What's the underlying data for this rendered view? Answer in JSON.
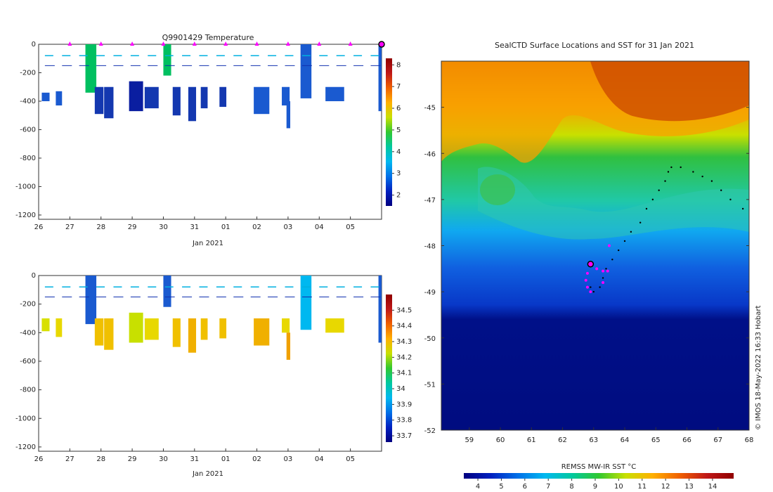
{
  "chart_data": [
    {
      "type": "heatmap",
      "title": "Q9901429  Temperature",
      "xlabel": "Jan 2021",
      "ylabel": "",
      "x_tick_labels": [
        "26",
        "27",
        "28",
        "29",
        "30",
        "31",
        "01",
        "02",
        "03",
        "04",
        "05"
      ],
      "y_tick_labels": [
        "0",
        "-200",
        "-400",
        "-600",
        "-800",
        "-1000",
        "-1200"
      ],
      "ylim": [
        -1230,
        0
      ],
      "colorbar": {
        "ticks": [
          "2",
          "3",
          "4",
          "5",
          "6",
          "7",
          "8"
        ],
        "vmin": 1.5,
        "vmax": 8.3,
        "colors": [
          "#000080",
          "#0020c0",
          "#0070e8",
          "#00b8f0",
          "#00c8a0",
          "#30c830",
          "#c8e000",
          "#ffb000",
          "#f06000",
          "#c01818",
          "#900000"
        ]
      },
      "surface_markers_day": [
        27,
        28,
        29,
        30,
        31,
        32,
        33,
        34,
        35,
        36
      ],
      "current_marker_day": 37,
      "profiles": [
        {
          "day": 26.1,
          "w": 0.25,
          "top": -340,
          "bottom": -400,
          "color": "#1a5ad0"
        },
        {
          "day": 26.55,
          "w": 0.2,
          "top": -330,
          "bottom": -430,
          "color": "#1a5ad0"
        },
        {
          "day": 27.5,
          "w": 0.35,
          "top": 0,
          "bottom": -340,
          "color": "#00c060"
        },
        {
          "day": 27.8,
          "w": 0.28,
          "top": -300,
          "bottom": -490,
          "color": "#1438b0"
        },
        {
          "day": 28.1,
          "w": 0.3,
          "top": -300,
          "bottom": -520,
          "color": "#1438b0"
        },
        {
          "day": 28.9,
          "w": 0.45,
          "top": -260,
          "bottom": -470,
          "color": "#0a1ea0"
        },
        {
          "day": 29.4,
          "w": 0.45,
          "top": -300,
          "bottom": -450,
          "color": "#1438b0"
        },
        {
          "day": 30.0,
          "w": 0.25,
          "top": 0,
          "bottom": -220,
          "color": "#00c060"
        },
        {
          "day": 30.3,
          "w": 0.25,
          "top": -300,
          "bottom": -500,
          "color": "#1438b0"
        },
        {
          "day": 30.8,
          "w": 0.25,
          "top": -300,
          "bottom": -540,
          "color": "#1438b0"
        },
        {
          "day": 31.2,
          "w": 0.22,
          "top": -300,
          "bottom": -450,
          "color": "#1438b0"
        },
        {
          "day": 31.8,
          "w": 0.22,
          "top": -300,
          "bottom": -440,
          "color": "#1438b0"
        },
        {
          "day": 32.9,
          "w": 0.5,
          "top": -300,
          "bottom": -490,
          "color": "#1a5ad0"
        },
        {
          "day": 33.8,
          "w": 0.25,
          "top": -300,
          "bottom": -430,
          "color": "#1a5ad0"
        },
        {
          "day": 33.95,
          "w": 0.12,
          "top": -400,
          "bottom": -590,
          "color": "#1a5ad0"
        },
        {
          "day": 34.4,
          "w": 0.35,
          "top": 0,
          "bottom": -380,
          "color": "#1a5ad0"
        },
        {
          "day": 35.2,
          "w": 0.6,
          "top": -300,
          "bottom": -400,
          "color": "#1a5ad0"
        },
        {
          "day": 36.9,
          "w": 0.1,
          "top": 0,
          "bottom": -470,
          "color": "#1a5ad0"
        }
      ]
    },
    {
      "type": "heatmap",
      "title": "",
      "xlabel": "Jan 2021",
      "ylabel": "",
      "x_tick_labels": [
        "26",
        "27",
        "28",
        "29",
        "30",
        "31",
        "01",
        "02",
        "03",
        "04",
        "05"
      ],
      "y_tick_labels": [
        "0",
        "-200",
        "-400",
        "-600",
        "-800",
        "-1000",
        "-1200"
      ],
      "ylim": [
        -1230,
        0
      ],
      "colorbar": {
        "ticks": [
          "33.7",
          "33.8",
          "33.9",
          "34",
          "34.1",
          "34.2",
          "34.3",
          "34.4",
          "34.5"
        ],
        "vmin": 33.66,
        "vmax": 34.6,
        "colors": [
          "#000080",
          "#0020c0",
          "#0070e8",
          "#00b8f0",
          "#00c8a0",
          "#30c830",
          "#c8e000",
          "#ffb000",
          "#f06000",
          "#c01818",
          "#900000"
        ]
      },
      "profiles": [
        {
          "day": 26.1,
          "w": 0.25,
          "top": -300,
          "bottom": -390,
          "color": "#d8e000"
        },
        {
          "day": 26.55,
          "w": 0.2,
          "top": -300,
          "bottom": -430,
          "color": "#e8d800"
        },
        {
          "day": 27.5,
          "w": 0.35,
          "top": 0,
          "bottom": -340,
          "color": "#1a5ad0"
        },
        {
          "day": 27.8,
          "w": 0.28,
          "top": -300,
          "bottom": -490,
          "color": "#f0c000"
        },
        {
          "day": 28.1,
          "w": 0.3,
          "top": -300,
          "bottom": -520,
          "color": "#f0c000"
        },
        {
          "day": 28.9,
          "w": 0.45,
          "top": -260,
          "bottom": -470,
          "color": "#c8e000"
        },
        {
          "day": 29.4,
          "w": 0.45,
          "top": -300,
          "bottom": -450,
          "color": "#e8d800"
        },
        {
          "day": 30.0,
          "w": 0.25,
          "top": 0,
          "bottom": -220,
          "color": "#1a5ad0"
        },
        {
          "day": 30.3,
          "w": 0.25,
          "top": -300,
          "bottom": -500,
          "color": "#f0c000"
        },
        {
          "day": 30.8,
          "w": 0.25,
          "top": -300,
          "bottom": -540,
          "color": "#f0b000"
        },
        {
          "day": 31.2,
          "w": 0.22,
          "top": -300,
          "bottom": -450,
          "color": "#f0c000"
        },
        {
          "day": 31.8,
          "w": 0.22,
          "top": -300,
          "bottom": -440,
          "color": "#f0c000"
        },
        {
          "day": 32.9,
          "w": 0.5,
          "top": -300,
          "bottom": -490,
          "color": "#f0b000"
        },
        {
          "day": 33.8,
          "w": 0.25,
          "top": -300,
          "bottom": -400,
          "color": "#e8d800"
        },
        {
          "day": 33.95,
          "w": 0.12,
          "top": -400,
          "bottom": -590,
          "color": "#f0a000"
        },
        {
          "day": 34.4,
          "w": 0.35,
          "top": 0,
          "bottom": -380,
          "color": "#00b8f0"
        },
        {
          "day": 35.2,
          "w": 0.6,
          "top": -300,
          "bottom": -400,
          "color": "#e8d800"
        },
        {
          "day": 36.9,
          "w": 0.1,
          "top": 0,
          "bottom": -470,
          "color": "#1a5ad0"
        }
      ]
    },
    {
      "type": "heatmap",
      "title": "SealCTD Surface Locations and SST for 31 Jan 2021",
      "xlabel": "",
      "ylabel": "",
      "x_tick_labels": [
        "59",
        "60",
        "61",
        "62",
        "63",
        "64",
        "65",
        "66",
        "67",
        "68"
      ],
      "y_tick_labels": [
        "-45",
        "-46",
        "-47",
        "-48",
        "-49",
        "-50",
        "-51",
        "-52"
      ],
      "xlim": [
        58.1,
        68
      ],
      "ylim": [
        -52,
        -44.0
      ],
      "colorbar": {
        "label": "REMSS MW-IR SST °C",
        "ticks": [
          "4",
          "5",
          "6",
          "7",
          "8",
          "9",
          "10",
          "11",
          "12",
          "13",
          "14"
        ],
        "vmin": 3.4,
        "vmax": 14.9,
        "colors": [
          "#000080",
          "#0020c0",
          "#0070e8",
          "#00b8f0",
          "#00c8a0",
          "#30c830",
          "#c8e000",
          "#ffb000",
          "#f06000",
          "#c01818",
          "#900000"
        ]
      },
      "track_black": [
        [
          65.5,
          -46.3
        ],
        [
          65.8,
          -46.3
        ],
        [
          66.2,
          -46.4
        ],
        [
          66.5,
          -46.5
        ],
        [
          66.8,
          -46.6
        ],
        [
          67.1,
          -46.8
        ],
        [
          67.4,
          -47.0
        ],
        [
          67.8,
          -47.2
        ],
        [
          65.4,
          -46.4
        ],
        [
          65.3,
          -46.6
        ],
        [
          65.1,
          -46.8
        ],
        [
          64.9,
          -47.0
        ],
        [
          64.7,
          -47.2
        ],
        [
          64.5,
          -47.5
        ],
        [
          64.2,
          -47.7
        ],
        [
          64.0,
          -47.9
        ],
        [
          63.8,
          -48.1
        ],
        [
          63.6,
          -48.3
        ],
        [
          63.4,
          -48.5
        ],
        [
          63.3,
          -48.7
        ],
        [
          63.2,
          -48.9
        ],
        [
          63.0,
          -49.0
        ],
        [
          62.9,
          -48.9
        ]
      ],
      "track_magenta": [
        [
          62.8,
          -48.6
        ],
        [
          62.75,
          -48.75
        ],
        [
          62.8,
          -48.9
        ],
        [
          62.9,
          -49.0
        ],
        [
          63.1,
          -48.5
        ],
        [
          63.3,
          -48.55
        ],
        [
          63.45,
          -48.55
        ],
        [
          63.3,
          -48.8
        ],
        [
          63.5,
          -48.0
        ]
      ],
      "current_position": [
        62.9,
        -48.4
      ],
      "annotation": "© IMOS 18-May-2022 16:33 Hobart"
    }
  ]
}
